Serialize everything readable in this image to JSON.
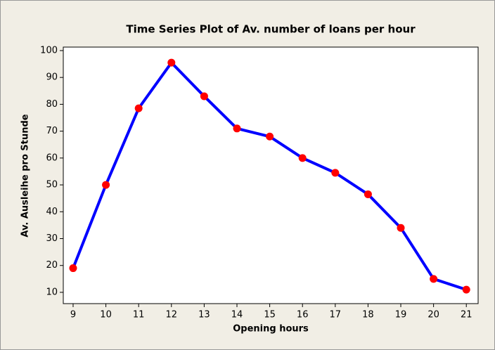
{
  "chart_data": {
    "type": "line",
    "title": "Time Series Plot of Av. number of loans per hour",
    "x_label": "Opening hours",
    "y_label": "Av. Ausleihe pro Stunde",
    "x": [
      9,
      10,
      11,
      12,
      13,
      14,
      15,
      16,
      17,
      18,
      19,
      20,
      21
    ],
    "series": [
      {
        "name": "Av. Ausleihe pro Stunde",
        "color": "#0000ff",
        "marker_color": "#ff0000",
        "values": [
          19,
          50,
          78.5,
          95.5,
          83,
          71,
          68,
          60,
          54.5,
          46.5,
          34,
          15,
          11
        ]
      }
    ],
    "xlim": [
      8.7,
      21.36
    ],
    "xticks": [
      9,
      10,
      11,
      12,
      13,
      14,
      15,
      16,
      17,
      18,
      19,
      20,
      21
    ],
    "ylim": [
      5.8,
      101.3
    ],
    "yticks": [
      10,
      20,
      30,
      40,
      50,
      60,
      70,
      80,
      90,
      100
    ],
    "grid": false
  }
}
